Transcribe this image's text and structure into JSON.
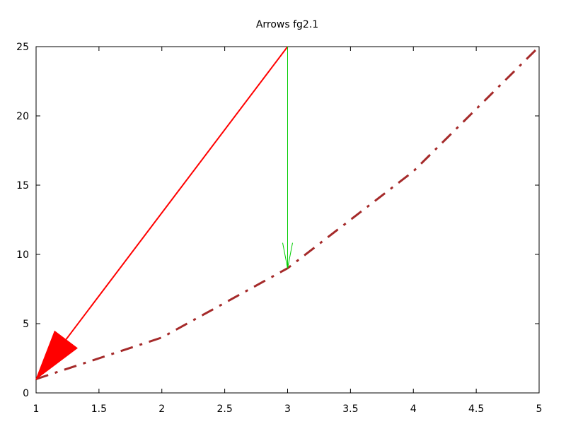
{
  "chart_data": {
    "type": "line",
    "title": "Arrows fg2.1",
    "xlabel": "",
    "ylabel": "",
    "xlim": [
      1,
      5
    ],
    "ylim": [
      0,
      25
    ],
    "xticks": [
      "1",
      "1.5",
      "2",
      "2.5",
      "3",
      "3.5",
      "4",
      "4.5",
      "5"
    ],
    "yticks": [
      "0",
      "5",
      "10",
      "15",
      "20",
      "25"
    ],
    "grid": false,
    "legend": "none",
    "series": [
      {
        "x": [
          1,
          2,
          3,
          4,
          5
        ],
        "y": [
          1,
          4,
          9,
          16,
          25
        ],
        "color": "#a52a2a",
        "style": "dash-dot"
      }
    ],
    "arrows": [
      {
        "from": [
          3,
          25
        ],
        "to": [
          1,
          1
        ],
        "color": "#ff0000",
        "head": "filled"
      },
      {
        "from": [
          3,
          25
        ],
        "to": [
          3,
          9
        ],
        "color": "#00cc00",
        "head": "open"
      }
    ]
  }
}
